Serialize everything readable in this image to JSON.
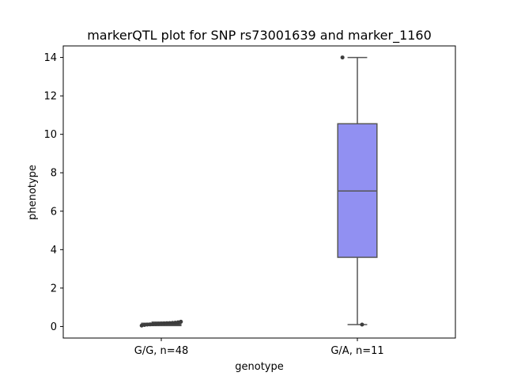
{
  "chart_data": {
    "type": "box",
    "title": "markerQTL plot for SNP rs73001639 and marker_1160",
    "xlabel": "genotype",
    "ylabel": "phenotype",
    "ylim": [
      -0.6,
      14.6
    ],
    "yticks": [
      0,
      2,
      4,
      6,
      8,
      10,
      12,
      14
    ],
    "grid": false,
    "categories": [
      "G/G, n=48",
      "G/A, n=11"
    ],
    "boxes": [
      {
        "category": "G/G, n=48",
        "whisker_low": 0.07,
        "q1": 0.12,
        "median": 0.15,
        "q3": 0.17,
        "whisker_high": 0.23,
        "fill": "#3d3d3d",
        "outliers": [
          0.05,
          0.08,
          0.1,
          0.11,
          0.12,
          0.13,
          0.14,
          0.15,
          0.16,
          0.17,
          0.18,
          0.19,
          0.2,
          0.22,
          0.25
        ]
      },
      {
        "category": "G/A, n=11",
        "whisker_low": 0.1,
        "q1": 3.6,
        "median": 7.05,
        "q3": 10.55,
        "whisker_high": 14.0,
        "fill": "#9190f2",
        "outliers": [
          14.0,
          0.1
        ]
      }
    ]
  }
}
